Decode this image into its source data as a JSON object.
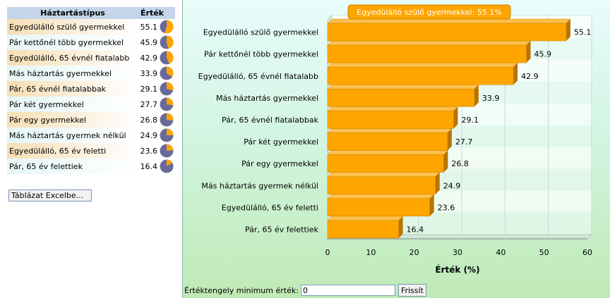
{
  "table": {
    "header_type": "Háztartástípus",
    "header_value": "Érték",
    "excel_button": "Táblázat Excelbe..."
  },
  "tooltip": "Egyedülálló szülő gyermekkel: 55.1%",
  "controls": {
    "axis_min_label": "Értéktengely minimum érték:",
    "axis_min_value": "0",
    "refresh_button": "Frissít"
  },
  "colors": {
    "bar": "#ffa500",
    "bar_side": "#b87400",
    "bar_top": "#ffc04d",
    "pie_value": "#ffa500",
    "pie_rest": "#6a6a9a",
    "row_tint_a": "#f6deb4",
    "row_tint_b": "#e6f6f6"
  },
  "chart_data": {
    "type": "bar",
    "orientation": "horizontal",
    "categories": [
      "Egyedülálló szülő gyermekkel",
      "Pár kettőnél több gyermekkel",
      "Egyedülálló, 65 évnél fiatalabb",
      "Más háztartás gyermekkel",
      "Pár, 65 évnél fiatalabbak",
      "Pár két gyermekkel",
      "Pár egy gyermekkel",
      "Más háztartás gyermek nélkül",
      "Egyedülálló, 65 év feletti",
      "Pár, 65 év felettiek"
    ],
    "values": [
      55.1,
      45.9,
      42.9,
      33.9,
      29.1,
      27.7,
      26.8,
      24.9,
      23.6,
      16.4
    ],
    "xlabel": "Érték (%)",
    "xlim": [
      0,
      60
    ],
    "ticks": [
      0,
      10,
      20,
      30,
      40,
      50,
      60
    ],
    "grid": true
  }
}
